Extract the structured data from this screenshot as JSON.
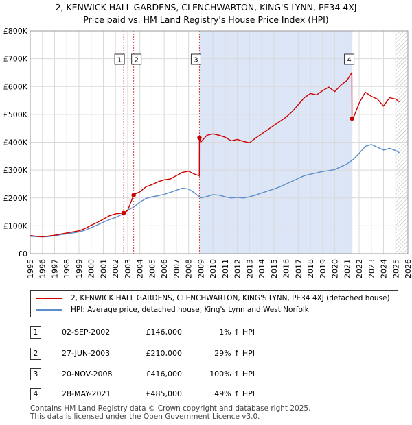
{
  "title_line1": "2, KENWICK HALL GARDENS, CLENCHWARTON, KING'S LYNN, PE34 4XJ",
  "title_line2": "Price paid vs. HM Land Registry's House Price Index (HPI)",
  "colors": {
    "price_line": "#cc0000",
    "hpi_line": "#5b8ec9",
    "shade": "#dde6f7",
    "grid": "#d9d9d9",
    "marker_line": "#cc0000"
  },
  "chart_data": {
    "type": "line",
    "xlim": [
      1995,
      2026
    ],
    "ylim": [
      0,
      800000
    ],
    "y_ticks": [
      {
        "value": 0,
        "label": "£0"
      },
      {
        "value": 100000,
        "label": "£100K"
      },
      {
        "value": 200000,
        "label": "£200K"
      },
      {
        "value": 300000,
        "label": "£300K"
      },
      {
        "value": 400000,
        "label": "£400K"
      },
      {
        "value": 500000,
        "label": "£500K"
      },
      {
        "value": 600000,
        "label": "£600K"
      },
      {
        "value": 700000,
        "label": "£700K"
      },
      {
        "value": 800000,
        "label": "£800K"
      }
    ],
    "x_ticks": [
      "1995",
      "1996",
      "1997",
      "1998",
      "1999",
      "2000",
      "2001",
      "2002",
      "2003",
      "2004",
      "2005",
      "2006",
      "2007",
      "2008",
      "2009",
      "2010",
      "2011",
      "2012",
      "2013",
      "2014",
      "2015",
      "2016",
      "2017",
      "2018",
      "2019",
      "2020",
      "2021",
      "2022",
      "2023",
      "2024",
      "2025",
      "2026"
    ],
    "shaded_ranges": [
      [
        2008.89,
        2021.41
      ]
    ],
    "hatched_from": 2025.0,
    "sales": [
      {
        "id": "1",
        "x": 2002.67,
        "y": 146000
      },
      {
        "id": "2",
        "x": 2003.49,
        "y": 210000
      },
      {
        "id": "3",
        "x": 2008.89,
        "y": 416000
      },
      {
        "id": "4",
        "x": 2021.41,
        "y": 485000
      }
    ],
    "series": [
      {
        "name": "2, KENWICK HALL GARDENS, CLENCHWARTON, KING'S LYNN, PE34 4XJ (detached house)",
        "x": [
          1995,
          1995.5,
          1996,
          1996.5,
          1997,
          1997.5,
          1998,
          1998.5,
          1999,
          1999.5,
          2000,
          2000.5,
          2001,
          2001.5,
          2002,
          2002.67,
          2002.68,
          2003,
          2003.49,
          2003.5,
          2004,
          2004.5,
          2005,
          2005.5,
          2006,
          2006.5,
          2007,
          2007.5,
          2008,
          2008.5,
          2008.88,
          2008.89,
          2009,
          2009.5,
          2010,
          2010.5,
          2011,
          2011.5,
          2012,
          2012.5,
          2013,
          2013.5,
          2014,
          2014.5,
          2015,
          2015.5,
          2016,
          2016.5,
          2017,
          2017.5,
          2018,
          2018.5,
          2019,
          2019.5,
          2020,
          2020.5,
          2021,
          2021.4,
          2021.41,
          2021.6,
          2022,
          2022.5,
          2023,
          2023.5,
          2024,
          2024.5,
          2025,
          2025.3
        ],
        "y": [
          65000,
          62000,
          60000,
          63000,
          66000,
          70000,
          74000,
          78000,
          82000,
          90000,
          102000,
          112000,
          124000,
          136000,
          143000,
          146000,
          146000,
          155000,
          210000,
          212000,
          222000,
          240000,
          248000,
          258000,
          265000,
          268000,
          280000,
          292000,
          296000,
          285000,
          280000,
          416000,
          400000,
          425000,
          430000,
          425000,
          418000,
          405000,
          410000,
          403000,
          398000,
          415000,
          430000,
          445000,
          460000,
          475000,
          490000,
          510000,
          535000,
          560000,
          575000,
          570000,
          585000,
          598000,
          582000,
          605000,
          622000,
          650000,
          485000,
          495000,
          540000,
          580000,
          565000,
          555000,
          530000,
          560000,
          555000,
          545000
        ]
      },
      {
        "name": "HPI: Average price, detached house, King's Lynn and West Norfolk",
        "x": [
          1995,
          1995.5,
          1996,
          1996.5,
          1997,
          1997.5,
          1998,
          1998.5,
          1999,
          1999.5,
          2000,
          2000.5,
          2001,
          2001.5,
          2002,
          2002.5,
          2003,
          2003.5,
          2004,
          2004.5,
          2005,
          2005.5,
          2006,
          2006.5,
          2007,
          2007.5,
          2008,
          2008.5,
          2009,
          2009.5,
          2010,
          2010.5,
          2011,
          2011.5,
          2012,
          2012.5,
          2013,
          2013.5,
          2014,
          2014.5,
          2015,
          2015.5,
          2016,
          2016.5,
          2017,
          2017.5,
          2018,
          2018.5,
          2019,
          2019.5,
          2020,
          2020.5,
          2021,
          2021.5,
          2022,
          2022.5,
          2023,
          2023.5,
          2024,
          2024.5,
          2025,
          2025.3
        ],
        "y": [
          62000,
          61000,
          60000,
          61000,
          64000,
          68000,
          71000,
          74000,
          78000,
          84000,
          93000,
          103000,
          113000,
          122000,
          130000,
          140000,
          155000,
          168000,
          185000,
          198000,
          204000,
          208000,
          213000,
          220000,
          228000,
          235000,
          232000,
          218000,
          200000,
          205000,
          212000,
          210000,
          204000,
          200000,
          202000,
          200000,
          204000,
          210000,
          218000,
          225000,
          232000,
          240000,
          250000,
          260000,
          270000,
          280000,
          285000,
          290000,
          295000,
          298000,
          302000,
          312000,
          322000,
          338000,
          360000,
          385000,
          392000,
          382000,
          372000,
          378000,
          370000,
          362000
        ]
      }
    ]
  },
  "legend": {
    "entry1": "2, KENWICK HALL GARDENS, CLENCHWARTON, KING'S LYNN, PE34 4XJ (detached house)",
    "entry2": "HPI: Average price, detached house, King's Lynn and West Norfolk"
  },
  "transactions": [
    {
      "num": "1",
      "date": "02-SEP-2002",
      "price": "£146,000",
      "hpi": "1% ↑ HPI"
    },
    {
      "num": "2",
      "date": "27-JUN-2003",
      "price": "£210,000",
      "hpi": "29% ↑ HPI"
    },
    {
      "num": "3",
      "date": "20-NOV-2008",
      "price": "£416,000",
      "hpi": "100% ↑ HPI"
    },
    {
      "num": "4",
      "date": "28-MAY-2021",
      "price": "£485,000",
      "hpi": "49% ↑ HPI"
    }
  ],
  "footer_line1": "Contains HM Land Registry data © Crown copyright and database right 2025.",
  "footer_line2": "This data is licensed under the Open Government Licence v3.0."
}
